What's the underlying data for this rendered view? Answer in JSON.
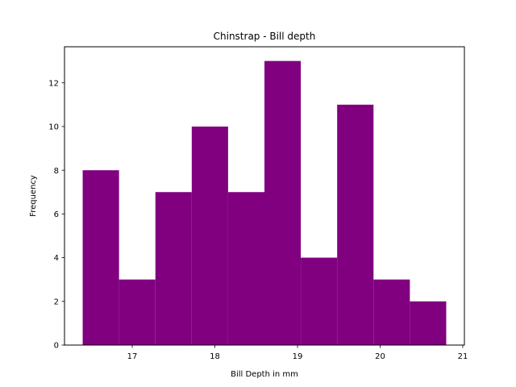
{
  "chart_data": {
    "type": "bar",
    "title": "Chinstrap - Bill depth",
    "xlabel": "Bill Depth in mm",
    "ylabel": "Frequency",
    "bar_color": "#800080",
    "bin_edges": [
      16.4,
      16.84,
      17.28,
      17.72,
      18.16,
      18.6,
      19.04,
      19.48,
      19.92,
      20.36,
      20.8
    ],
    "values": [
      8,
      3,
      7,
      10,
      7,
      13,
      4,
      11,
      3,
      2
    ],
    "xlim": [
      16.18,
      21.02
    ],
    "ylim": [
      0,
      13.65
    ],
    "xticks": [
      17,
      18,
      19,
      20,
      21
    ],
    "yticks": [
      0,
      2,
      4,
      6,
      8,
      10,
      12
    ],
    "grid": false,
    "legend": "none"
  }
}
